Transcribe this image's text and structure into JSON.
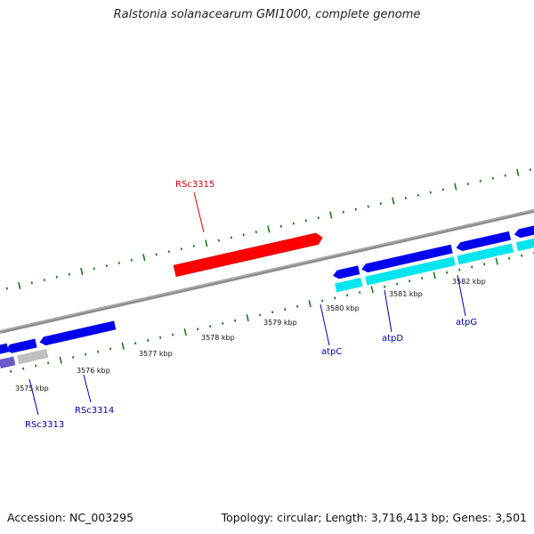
{
  "title": "Ralstonia solanacearum GMI1000, complete genome",
  "footer": {
    "accession": "Accession: NC_003295",
    "summary": "Topology: circular; Length: 3,716,413 bp; Genes: 3,501"
  },
  "colors": {
    "background": "#ffffff",
    "backbone": "#8c8c8c",
    "tick": "#1a7a1a",
    "gene_red": "#ff0000",
    "gene_blue": "#0000ee",
    "gene_cyan": "#00e5ee",
    "gene_grey": "#c0c0c0",
    "gene_purple": "#6a5acd",
    "label_blue": "#0000aa",
    "label_red": "#cc0000"
  },
  "scale_labels": [
    "3575 kbp",
    "3576 kbp",
    "3577 kbp",
    "3578 kbp",
    "3579 kbp",
    "3580 kbp",
    "3581 kbp",
    "3582 kbp"
  ],
  "gene_labels": [
    {
      "id": "rsc3313",
      "text": "RSc3313",
      "color": "label_blue"
    },
    {
      "id": "rsc3314",
      "text": "RSc3314",
      "color": "label_blue"
    },
    {
      "id": "rsc3315",
      "text": "RSc3315",
      "color": "label_red"
    },
    {
      "id": "atpc",
      "text": "atpC",
      "color": "label_blue"
    },
    {
      "id": "atpd",
      "text": "atpD",
      "color": "label_blue"
    },
    {
      "id": "atpg",
      "text": "atpG",
      "color": "label_blue"
    }
  ]
}
